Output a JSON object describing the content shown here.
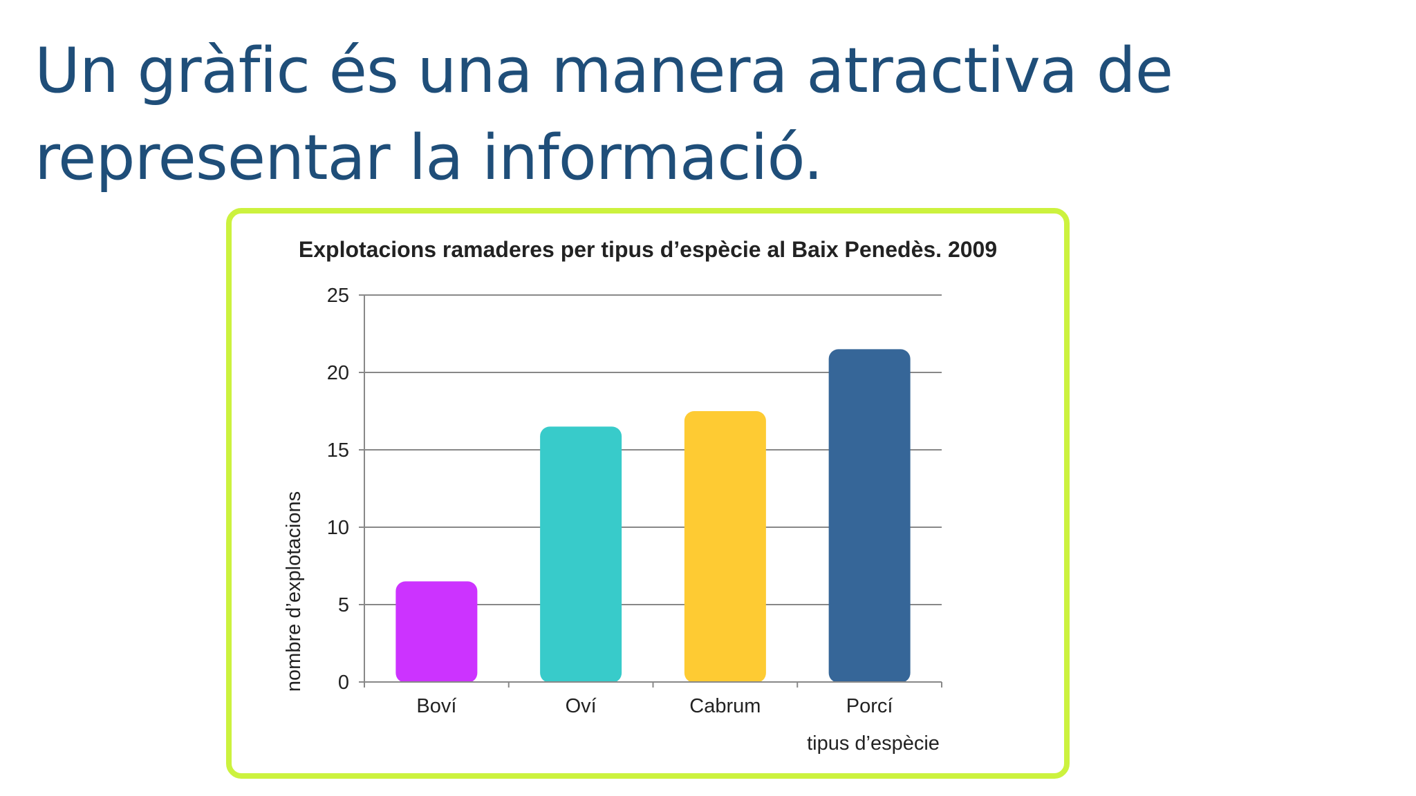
{
  "slide": {
    "heading_line1": "Un gràfic és una manera atractiva de",
    "heading_line2": "representar la informació."
  },
  "chart_data": {
    "type": "bar",
    "title": "Explotacions ramaderes per tipus d’espècie al Baix Penedès. 2009",
    "xlabel": "tipus d’espècie",
    "ylabel": "nombre d’explotacions",
    "categories": [
      "Boví",
      "Oví",
      "Cabrum",
      "Porcí"
    ],
    "values": [
      6.5,
      16.5,
      17.5,
      21.5
    ],
    "colors": [
      "#cc33ff",
      "#38cbca",
      "#fecb33",
      "#366698"
    ],
    "ylim": [
      0,
      25
    ],
    "yticks": [
      0,
      5,
      10,
      15,
      20,
      25
    ],
    "grid": true,
    "frame_color": "#ccf23e"
  }
}
